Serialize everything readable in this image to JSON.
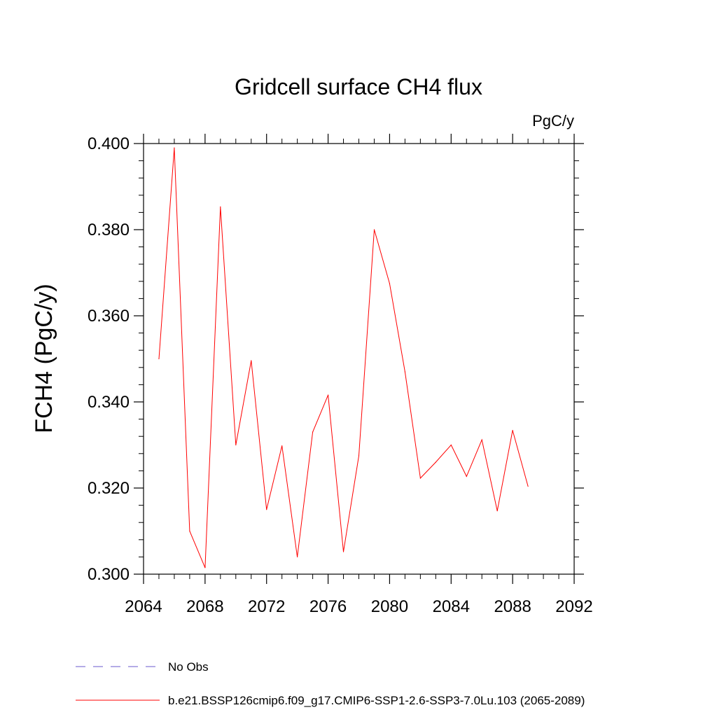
{
  "chart_data": {
    "type": "line",
    "title": "Gridcell surface CH4 flux",
    "units_label": "PgC/y",
    "ylabel": "FCH4  (PgC/y)",
    "xlabel": "",
    "xlim": [
      2064,
      2092
    ],
    "ylim": [
      0.3,
      0.4
    ],
    "x_ticks": [
      2064,
      2068,
      2072,
      2076,
      2080,
      2084,
      2088,
      2092
    ],
    "x_tick_labels": [
      "2064",
      "2068",
      "2072",
      "2076",
      "2080",
      "2084",
      "2088",
      "2092"
    ],
    "y_ticks": [
      0.3,
      0.32,
      0.34,
      0.36,
      0.38,
      0.4
    ],
    "y_tick_labels": [
      "0.300",
      "0.320",
      "0.340",
      "0.360",
      "0.380",
      "0.400"
    ],
    "grid": false,
    "legend_position": "bottom",
    "series": [
      {
        "name": "b.e21.BSSP126cmip6.f09_g17.CMIP6-SSP1-2.6-SSP3-7.0Lu.103 (2065-2089)",
        "color": "#ff0000",
        "dash": "solid",
        "x": [
          2065,
          2066,
          2067,
          2068,
          2069,
          2070,
          2071,
          2072,
          2073,
          2074,
          2075,
          2076,
          2077,
          2078,
          2079,
          2080,
          2081,
          2082,
          2083,
          2084,
          2085,
          2086,
          2087,
          2088,
          2089
        ],
        "y": [
          0.35,
          0.399,
          0.31,
          0.3015,
          0.3853,
          0.33,
          0.3496,
          0.315,
          0.3298,
          0.304,
          0.333,
          0.3416,
          0.3052,
          0.3275,
          0.38,
          0.3675,
          0.347,
          0.3223,
          0.326,
          0.33,
          0.3227,
          0.3312,
          0.3147,
          0.3334,
          0.3204
        ]
      }
    ],
    "legend": [
      {
        "label": "No Obs",
        "color": "#6a5acd",
        "dash": "dashed"
      },
      {
        "label": "b.e21.BSSP126cmip6.f09_g17.CMIP6-SSP1-2.6-SSP3-7.0Lu.103 (2065-2089)",
        "color": "#ff0000",
        "dash": "solid"
      }
    ]
  }
}
